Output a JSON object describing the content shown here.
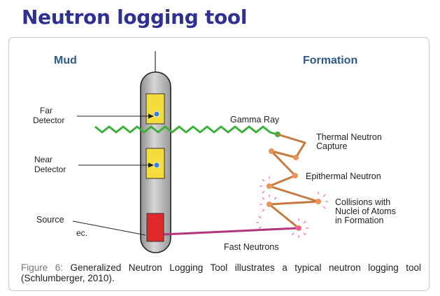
{
  "header": {
    "title": "Neutron logging tool"
  },
  "diagram": {
    "zones": {
      "left": "Mud",
      "right": "Formation"
    },
    "labels": {
      "far_detector": [
        "Far",
        "Detector"
      ],
      "near_detector": [
        "Near",
        "Detector"
      ],
      "source": "Source",
      "gamma_ray": "Gamma Ray",
      "thermal_capture": [
        "Thermal Neutron",
        "Capture"
      ],
      "epithermal": "Epithermal Neutron",
      "collisions": [
        "Collisions with",
        "Nuclei of Atoms",
        "in Formation"
      ],
      "fast_neutrons": "Fast Neutrons"
    },
    "colors": {
      "title": "#2e3192",
      "zone_label": "#2e5a86",
      "tool_body": "#b5b5b5",
      "detector": "#f4dc3c",
      "detector_dot": "#3a7fd5",
      "source": "#e02a2a",
      "gamma_ray": "#3cae3c",
      "neutron_path": "#c77a3e",
      "collision_point": "#e8945a",
      "burst": "#ff4fb0",
      "fast_neutron_beam": "#b0357a"
    }
  },
  "caption": {
    "fragment": "ec.",
    "lead": "Figure 6:",
    "text": "Generalized Neutron Logging Tool illustrates a typical neutron logging tool (Schlumberger, 2010)."
  }
}
